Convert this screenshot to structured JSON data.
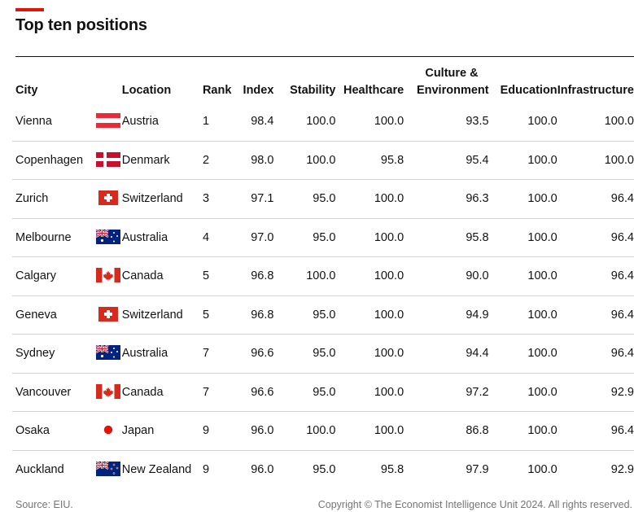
{
  "title": "Top ten positions",
  "footer": {
    "source": "Source: EIU.",
    "copyright": "Copyright © The Economist Intelligence Unit 2024. All rights reserved."
  },
  "colors": {
    "accent": "#e3120b",
    "text": "#121212",
    "muted": "#757575",
    "rule": "#d4d4d4"
  },
  "chart_data": {
    "type": "table",
    "title": "Top ten positions",
    "columns": [
      "City",
      "Location",
      "Rank",
      "Index",
      "Stability",
      "Healthcare",
      "Culture & Environment",
      "Education",
      "Infrastructure"
    ],
    "rows": [
      {
        "city": "Vienna",
        "flag": "austria-flag-icon",
        "location": "Austria",
        "rank": "1",
        "index": "98.4",
        "stability": "100.0",
        "healthcare": "100.0",
        "culture": "93.5",
        "education": "100.0",
        "infrastructure": "100.0"
      },
      {
        "city": "Copenhagen",
        "flag": "denmark-flag-icon",
        "location": "Denmark",
        "rank": "2",
        "index": "98.0",
        "stability": "100.0",
        "healthcare": "95.8",
        "culture": "95.4",
        "education": "100.0",
        "infrastructure": "100.0"
      },
      {
        "city": "Zurich",
        "flag": "switzerland-flag-icon",
        "location": "Switzerland",
        "rank": "3",
        "index": "97.1",
        "stability": "95.0",
        "healthcare": "100.0",
        "culture": "96.3",
        "education": "100.0",
        "infrastructure": "96.4"
      },
      {
        "city": "Melbourne",
        "flag": "australia-flag-icon",
        "location": "Australia",
        "rank": "4",
        "index": "97.0",
        "stability": "95.0",
        "healthcare": "100.0",
        "culture": "95.8",
        "education": "100.0",
        "infrastructure": "96.4"
      },
      {
        "city": "Calgary",
        "flag": "canada-flag-icon",
        "location": "Canada",
        "rank": "5",
        "index": "96.8",
        "stability": "100.0",
        "healthcare": "100.0",
        "culture": "90.0",
        "education": "100.0",
        "infrastructure": "96.4"
      },
      {
        "city": "Geneva",
        "flag": "switzerland-flag-icon",
        "location": "Switzerland",
        "rank": "5",
        "index": "96.8",
        "stability": "95.0",
        "healthcare": "100.0",
        "culture": "94.9",
        "education": "100.0",
        "infrastructure": "96.4"
      },
      {
        "city": "Sydney",
        "flag": "australia-flag-icon",
        "location": "Australia",
        "rank": "7",
        "index": "96.6",
        "stability": "95.0",
        "healthcare": "100.0",
        "culture": "94.4",
        "education": "100.0",
        "infrastructure": "96.4"
      },
      {
        "city": "Vancouver",
        "flag": "canada-flag-icon",
        "location": "Canada",
        "rank": "7",
        "index": "96.6",
        "stability": "95.0",
        "healthcare": "100.0",
        "culture": "97.2",
        "education": "100.0",
        "infrastructure": "92.9"
      },
      {
        "city": "Osaka",
        "flag": "japan-flag-icon",
        "location": "Japan",
        "rank": "9",
        "index": "96.0",
        "stability": "100.0",
        "healthcare": "100.0",
        "culture": "86.8",
        "education": "100.0",
        "infrastructure": "96.4"
      },
      {
        "city": "Auckland",
        "flag": "new-zealand-flag-icon",
        "location": "New Zealand",
        "rank": "9",
        "index": "96.0",
        "stability": "95.0",
        "healthcare": "95.8",
        "culture": "97.9",
        "education": "100.0",
        "infrastructure": "92.9"
      }
    ]
  }
}
